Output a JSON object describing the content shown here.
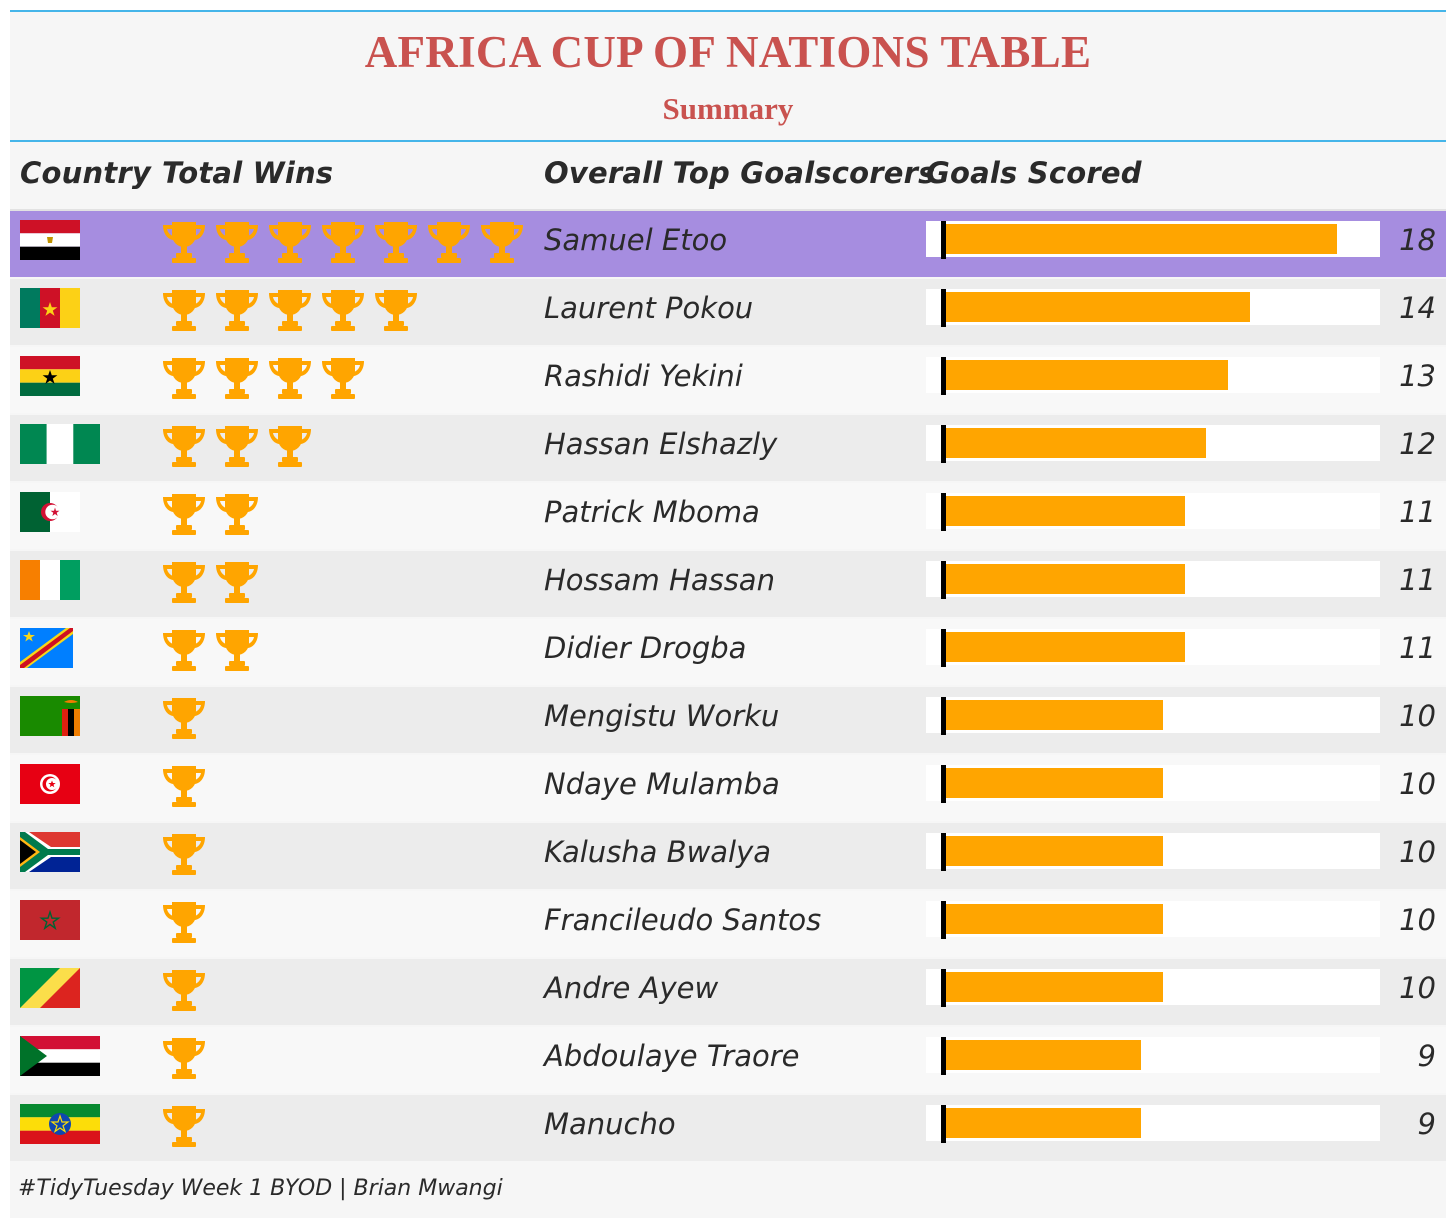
{
  "header": {
    "title": "AFRICA CUP OF NATIONS TABLE",
    "subtitle": "Summary"
  },
  "columns": {
    "country": "Country",
    "total_wins": "Total Wins",
    "top_scorers": "Overall Top Goalscorers",
    "goals": "Goals Scored"
  },
  "colors": {
    "title": "#c9524f",
    "accent_rule": "#45b5e9",
    "highlight_row": "#a68de0",
    "trophy": "#ffa500",
    "bar": "#ffa500"
  },
  "rows": [
    {
      "flag": "egypt-flag",
      "wins": 7,
      "scorer": "Samuel Etoo",
      "goals": 18,
      "highlight": true
    },
    {
      "flag": "cameroon-flag",
      "wins": 5,
      "scorer": "Laurent Pokou",
      "goals": 14,
      "highlight": false
    },
    {
      "flag": "ghana-flag",
      "wins": 4,
      "scorer": "Rashidi Yekini",
      "goals": 13,
      "highlight": false
    },
    {
      "flag": "nigeria-flag",
      "wins": 3,
      "scorer": "Hassan Elshazly",
      "goals": 12,
      "highlight": false
    },
    {
      "flag": "algeria-flag",
      "wins": 2,
      "scorer": "Patrick Mboma",
      "goals": 11,
      "highlight": false
    },
    {
      "flag": "ivory-coast-flag",
      "wins": 2,
      "scorer": "Hossam Hassan",
      "goals": 11,
      "highlight": false
    },
    {
      "flag": "dr-congo-flag",
      "wins": 2,
      "scorer": "Didier Drogba",
      "goals": 11,
      "highlight": false
    },
    {
      "flag": "zambia-flag",
      "wins": 1,
      "scorer": "Mengistu Worku",
      "goals": 10,
      "highlight": false
    },
    {
      "flag": "tunisia-flag",
      "wins": 1,
      "scorer": "Ndaye Mulamba",
      "goals": 10,
      "highlight": false
    },
    {
      "flag": "south-africa-flag",
      "wins": 1,
      "scorer": "Kalusha Bwalya",
      "goals": 10,
      "highlight": false
    },
    {
      "flag": "morocco-flag",
      "wins": 1,
      "scorer": "Francileudo Santos",
      "goals": 10,
      "highlight": false
    },
    {
      "flag": "congo-flag",
      "wins": 1,
      "scorer": "Andre Ayew",
      "goals": 10,
      "highlight": false
    },
    {
      "flag": "sudan-flag",
      "wins": 1,
      "scorer": "Abdoulaye Traore",
      "goals": 9,
      "highlight": false
    },
    {
      "flag": "ethiopia-flag",
      "wins": 1,
      "scorer": "Manucho",
      "goals": 9,
      "highlight": false
    }
  ],
  "chart_data": {
    "type": "table",
    "title": "AFRICA CUP OF NATIONS TABLE",
    "subtitle": "Summary",
    "columns": [
      "Country",
      "Total Wins",
      "Overall Top Goalscorers",
      "Goals Scored"
    ],
    "wins": [
      7,
      5,
      4,
      3,
      2,
      2,
      2,
      1,
      1,
      1,
      1,
      1,
      1,
      1
    ],
    "scorers": [
      "Samuel Etoo",
      "Laurent Pokou",
      "Rashidi Yekini",
      "Hassan Elshazly",
      "Patrick Mboma",
      "Hossam Hassan",
      "Didier Drogba",
      "Mengistu Worku",
      "Ndaye Mulamba",
      "Kalusha Bwalya",
      "Francileudo Santos",
      "Andre Ayew",
      "Abdoulaye Traore",
      "Manucho"
    ],
    "goals": [
      18,
      14,
      13,
      12,
      11,
      11,
      11,
      10,
      10,
      10,
      10,
      10,
      9,
      9
    ],
    "bar_max": 20
  },
  "footer": {
    "caption": "#TidyTuesday Week 1 BYOD | Brian Mwangi"
  }
}
